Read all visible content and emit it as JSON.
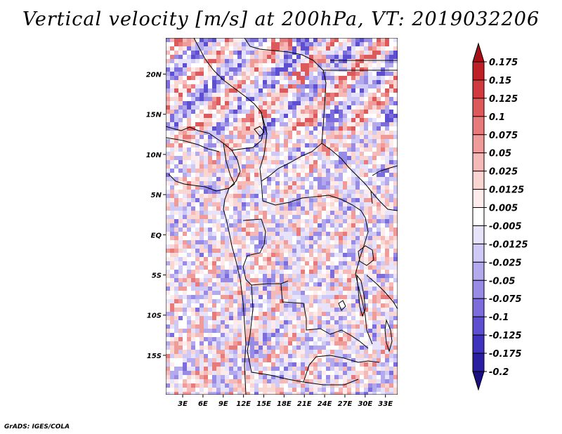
{
  "chart_data": {
    "type": "heatmap",
    "title": "Vertical velocity [m/s] at 200hPa, VT: 2019032206",
    "variable": "Vertical velocity",
    "units": "m/s",
    "level": "200hPa",
    "valid_time": "2019032206",
    "x_ticks": [
      "3E",
      "6E",
      "9E",
      "12E",
      "15E",
      "18E",
      "21E",
      "24E",
      "27E",
      "30E",
      "33E"
    ],
    "x_tick_values": [
      3,
      6,
      9,
      12,
      15,
      18,
      21,
      24,
      27,
      30,
      33
    ],
    "y_ticks": [
      "20N",
      "15N",
      "10N",
      "5N",
      "EQ",
      "5S",
      "10S",
      "15S"
    ],
    "y_tick_values": [
      20,
      15,
      10,
      5,
      0,
      -5,
      -10,
      -15
    ],
    "xlim": [
      0.5,
      34.8
    ],
    "ylim": [
      -19.9,
      24.5
    ],
    "colorbar": {
      "labels": [
        "0.175",
        "0.15",
        "0.125",
        "0.1",
        "0.075",
        "0.05",
        "0.025",
        "0.0125",
        "0.005",
        "-0.005",
        "-0.0125",
        "-0.025",
        "-0.05",
        "-0.075",
        "-0.1",
        "-0.125",
        "-0.175",
        "-0.2"
      ],
      "colors": [
        "#a50f15",
        "#bf1f27",
        "#d13a3f",
        "#dd5a5c",
        "#e77b7b",
        "#ef9b99",
        "#f5bab7",
        "#fad6d3",
        "#fdeceb",
        "#ffffff",
        "#e6e3fb",
        "#cfc9f5",
        "#b3aaee",
        "#988be6",
        "#7b6ddc",
        "#5d4fd0",
        "#3f32bd",
        "#2a1fa0",
        "#1c1080"
      ]
    }
  },
  "footer": {
    "credit": "GrADS: IGES/COLA"
  }
}
